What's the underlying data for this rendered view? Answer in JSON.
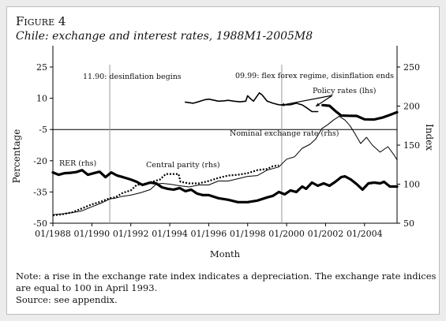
{
  "figure": {
    "label": "Figure 4",
    "title": "Chile: exchange and interest rates, 1988M1-2005M8"
  },
  "notes": {
    "line1": "Note: a rise in the exchange rate index indicates a depreciation. The exchange rate indices",
    "line2": "are equal to 100 in April 1993.",
    "line3": "Source: see appendix."
  },
  "chart_data": {
    "type": "line",
    "title": "Chile: exchange and interest rates, 1988M1-2005M8",
    "xlabel": "Month",
    "ylabel_left": "Percentage",
    "ylabel_right": "Index",
    "x_tick_labels": [
      "01/1988",
      "01/1990",
      "01/1992",
      "01/1994",
      "01/1996",
      "01/1998",
      "01/2000",
      "01/2002",
      "01/2004"
    ],
    "x_tick_years": [
      1988,
      1990,
      1992,
      1994,
      1996,
      1998,
      2000,
      2002,
      2004
    ],
    "xlim": [
      1988.0,
      2005.67
    ],
    "y_left": {
      "ticks": [
        25,
        10,
        -5,
        -20,
        -35,
        -50
      ],
      "tick_labels": [
        "25",
        "10",
        "-5",
        "-20",
        "-35",
        "-50"
      ],
      "lim": [
        -50,
        25
      ]
    },
    "y_right": {
      "ticks": [
        250,
        200,
        150,
        100,
        50
      ],
      "tick_labels": [
        "250",
        "200",
        "150",
        "100",
        "50"
      ],
      "lim": [
        50,
        250
      ]
    },
    "vlines": [
      {
        "x": 1990.92,
        "label": "11.90: desinflation begins"
      },
      {
        "x": 1999.75,
        "label": "09.99: flex forex regime, disinflation ends"
      }
    ],
    "annotations": [
      {
        "text": "Policy rates (lhs)",
        "arrow_to": [
          [
            1999.7,
            5.5
          ],
          [
            2001.5,
            5.0
          ]
        ]
      },
      {
        "text": "Nominal exchange rate (rhs)"
      },
      {
        "text": "Central parity (rhs)"
      },
      {
        "text": "RER (rhs)"
      }
    ],
    "series": [
      {
        "name": "Policy rates (lhs)",
        "axis": "left",
        "style": "solid",
        "width": "medium",
        "points": [
          [
            1994.8,
            8.2
          ],
          [
            1995.2,
            7.6
          ],
          [
            1995.5,
            8.4
          ],
          [
            1995.8,
            9.3
          ],
          [
            1996.0,
            9.6
          ],
          [
            1996.2,
            9.2
          ],
          [
            1996.5,
            8.6
          ],
          [
            1996.8,
            8.8
          ],
          [
            1997.0,
            9.0
          ],
          [
            1997.3,
            8.6
          ],
          [
            1997.6,
            8.3
          ],
          [
            1997.9,
            8.6
          ],
          [
            1998.0,
            11.2
          ],
          [
            1998.1,
            10.2
          ],
          [
            1998.3,
            8.6
          ],
          [
            1998.6,
            12.6
          ],
          [
            1998.75,
            11.5
          ],
          [
            1999.0,
            8.6
          ],
          [
            1999.3,
            7.6
          ],
          [
            1999.6,
            6.9
          ],
          [
            1999.9,
            6.8
          ],
          [
            2000.2,
            6.9
          ],
          [
            2000.5,
            7.6
          ],
          [
            2000.8,
            6.8
          ],
          [
            2001.0,
            5.6
          ],
          [
            2001.3,
            3.6
          ],
          [
            2001.6,
            3.6
          ]
        ]
      },
      {
        "name": "Policy rates (lhs)",
        "axis": "left",
        "style": "solid",
        "width": "thick",
        "points": [
          [
            2001.85,
            6.7
          ],
          [
            2002.2,
            6.4
          ],
          [
            2002.5,
            3.9
          ],
          [
            2002.8,
            1.7
          ],
          [
            2003.2,
            1.6
          ],
          [
            2003.6,
            1.5
          ],
          [
            2004.0,
            -0.1
          ],
          [
            2004.5,
            -0.2
          ],
          [
            2004.9,
            0.7
          ],
          [
            2005.3,
            2.0
          ],
          [
            2005.67,
            3.3
          ]
        ]
      },
      {
        "name": "Nominal exchange rate (rhs)",
        "axis": "right",
        "style": "solid",
        "width": "thin",
        "points": [
          [
            1988.0,
            61
          ],
          [
            1988.5,
            62
          ],
          [
            1989.0,
            63.5
          ],
          [
            1989.5,
            66
          ],
          [
            1990.0,
            71
          ],
          [
            1990.5,
            76
          ],
          [
            1990.92,
            81
          ],
          [
            1991.2,
            82
          ],
          [
            1991.5,
            84
          ],
          [
            1992.0,
            86
          ],
          [
            1992.5,
            89
          ],
          [
            1993.0,
            93
          ],
          [
            1993.3,
            100
          ],
          [
            1993.6,
            101
          ],
          [
            1994.0,
            100
          ],
          [
            1994.5,
            98
          ],
          [
            1995.0,
            96.5
          ],
          [
            1995.5,
            99
          ],
          [
            1996.0,
            99
          ],
          [
            1996.5,
            104
          ],
          [
            1997.0,
            104
          ],
          [
            1997.5,
            107
          ],
          [
            1998.0,
            110
          ],
          [
            1998.5,
            111
          ],
          [
            1999.0,
            118
          ],
          [
            1999.3,
            120
          ],
          [
            1999.6,
            122
          ],
          [
            2000.0,
            132
          ],
          [
            2000.4,
            135
          ],
          [
            2000.8,
            146
          ],
          [
            2001.2,
            151
          ],
          [
            2001.5,
            158
          ],
          [
            2001.8,
            171
          ],
          [
            2002.1,
            176
          ],
          [
            2002.4,
            182
          ],
          [
            2002.7,
            187
          ],
          [
            2003.0,
            182
          ],
          [
            2003.25,
            175
          ],
          [
            2003.5,
            165
          ],
          [
            2003.8,
            152
          ],
          [
            2004.1,
            160
          ],
          [
            2004.4,
            150
          ],
          [
            2004.8,
            141
          ],
          [
            2005.2,
            148
          ],
          [
            2005.5,
            138
          ],
          [
            2005.67,
            131
          ]
        ]
      },
      {
        "name": "Central parity (rhs)",
        "axis": "right",
        "style": "dotted",
        "width": "medium",
        "points": [
          [
            1988.0,
            60
          ],
          [
            1988.5,
            61.5
          ],
          [
            1989.0,
            64
          ],
          [
            1989.5,
            69
          ],
          [
            1990.0,
            74
          ],
          [
            1990.5,
            78
          ],
          [
            1990.92,
            82
          ],
          [
            1991.2,
            83
          ],
          [
            1991.6,
            89
          ],
          [
            1992.0,
            92
          ],
          [
            1992.3,
            99
          ],
          [
            1992.7,
            100.5
          ],
          [
            1993.0,
            102.5
          ],
          [
            1993.3,
            104.5
          ],
          [
            1993.5,
            106
          ],
          [
            1993.8,
            113
          ],
          [
            1994.2,
            113
          ],
          [
            1994.45,
            113
          ],
          [
            1994.55,
            103
          ],
          [
            1995.0,
            101
          ],
          [
            1995.5,
            101
          ],
          [
            1996.0,
            104
          ],
          [
            1996.5,
            108
          ],
          [
            1997.0,
            111
          ],
          [
            1997.5,
            112
          ],
          [
            1998.0,
            114
          ],
          [
            1998.5,
            118
          ],
          [
            1999.0,
            119.5
          ],
          [
            1999.3,
            123
          ],
          [
            1999.6,
            124
          ]
        ]
      },
      {
        "name": "RER (rhs)",
        "axis": "right",
        "style": "solid",
        "width": "thick",
        "points": [
          [
            1988.0,
            115
          ],
          [
            1988.3,
            112
          ],
          [
            1988.6,
            114
          ],
          [
            1988.9,
            114.5
          ],
          [
            1989.2,
            115.5
          ],
          [
            1989.5,
            118
          ],
          [
            1989.8,
            112
          ],
          [
            1990.1,
            114
          ],
          [
            1990.4,
            116
          ],
          [
            1990.7,
            109
          ],
          [
            1991.0,
            115
          ],
          [
            1991.3,
            111
          ],
          [
            1991.6,
            109
          ],
          [
            1992.0,
            106
          ],
          [
            1992.3,
            103
          ],
          [
            1992.6,
            99
          ],
          [
            1993.0,
            102
          ],
          [
            1993.3,
            101
          ],
          [
            1993.6,
            96
          ],
          [
            1993.9,
            94
          ],
          [
            1994.2,
            93
          ],
          [
            1994.5,
            95
          ],
          [
            1994.8,
            91
          ],
          [
            1995.1,
            93
          ],
          [
            1995.4,
            88
          ],
          [
            1995.7,
            86
          ],
          [
            1996.0,
            86
          ],
          [
            1996.5,
            82
          ],
          [
            1997.0,
            80
          ],
          [
            1997.5,
            77
          ],
          [
            1998.0,
            77
          ],
          [
            1998.5,
            79
          ],
          [
            1999.0,
            83
          ],
          [
            1999.3,
            85
          ],
          [
            1999.6,
            90
          ],
          [
            1999.9,
            87
          ],
          [
            2000.2,
            92
          ],
          [
            2000.5,
            90
          ],
          [
            2000.8,
            97
          ],
          [
            2001.0,
            94
          ],
          [
            2001.3,
            102
          ],
          [
            2001.6,
            98
          ],
          [
            2001.9,
            101
          ],
          [
            2002.2,
            98
          ],
          [
            2002.5,
            103
          ],
          [
            2002.8,
            109
          ],
          [
            2003.0,
            110
          ],
          [
            2003.3,
            106
          ],
          [
            2003.6,
            100
          ],
          [
            2003.9,
            93
          ],
          [
            2004.2,
            101
          ],
          [
            2004.5,
            102
          ],
          [
            2004.8,
            101
          ],
          [
            2005.0,
            103
          ],
          [
            2005.3,
            97
          ],
          [
            2005.67,
            97
          ]
        ]
      }
    ],
    "colors": {
      "lines": "#000000",
      "axes": "#000000",
      "vlines": "#9a9a9a",
      "background": "#ffffff"
    }
  }
}
